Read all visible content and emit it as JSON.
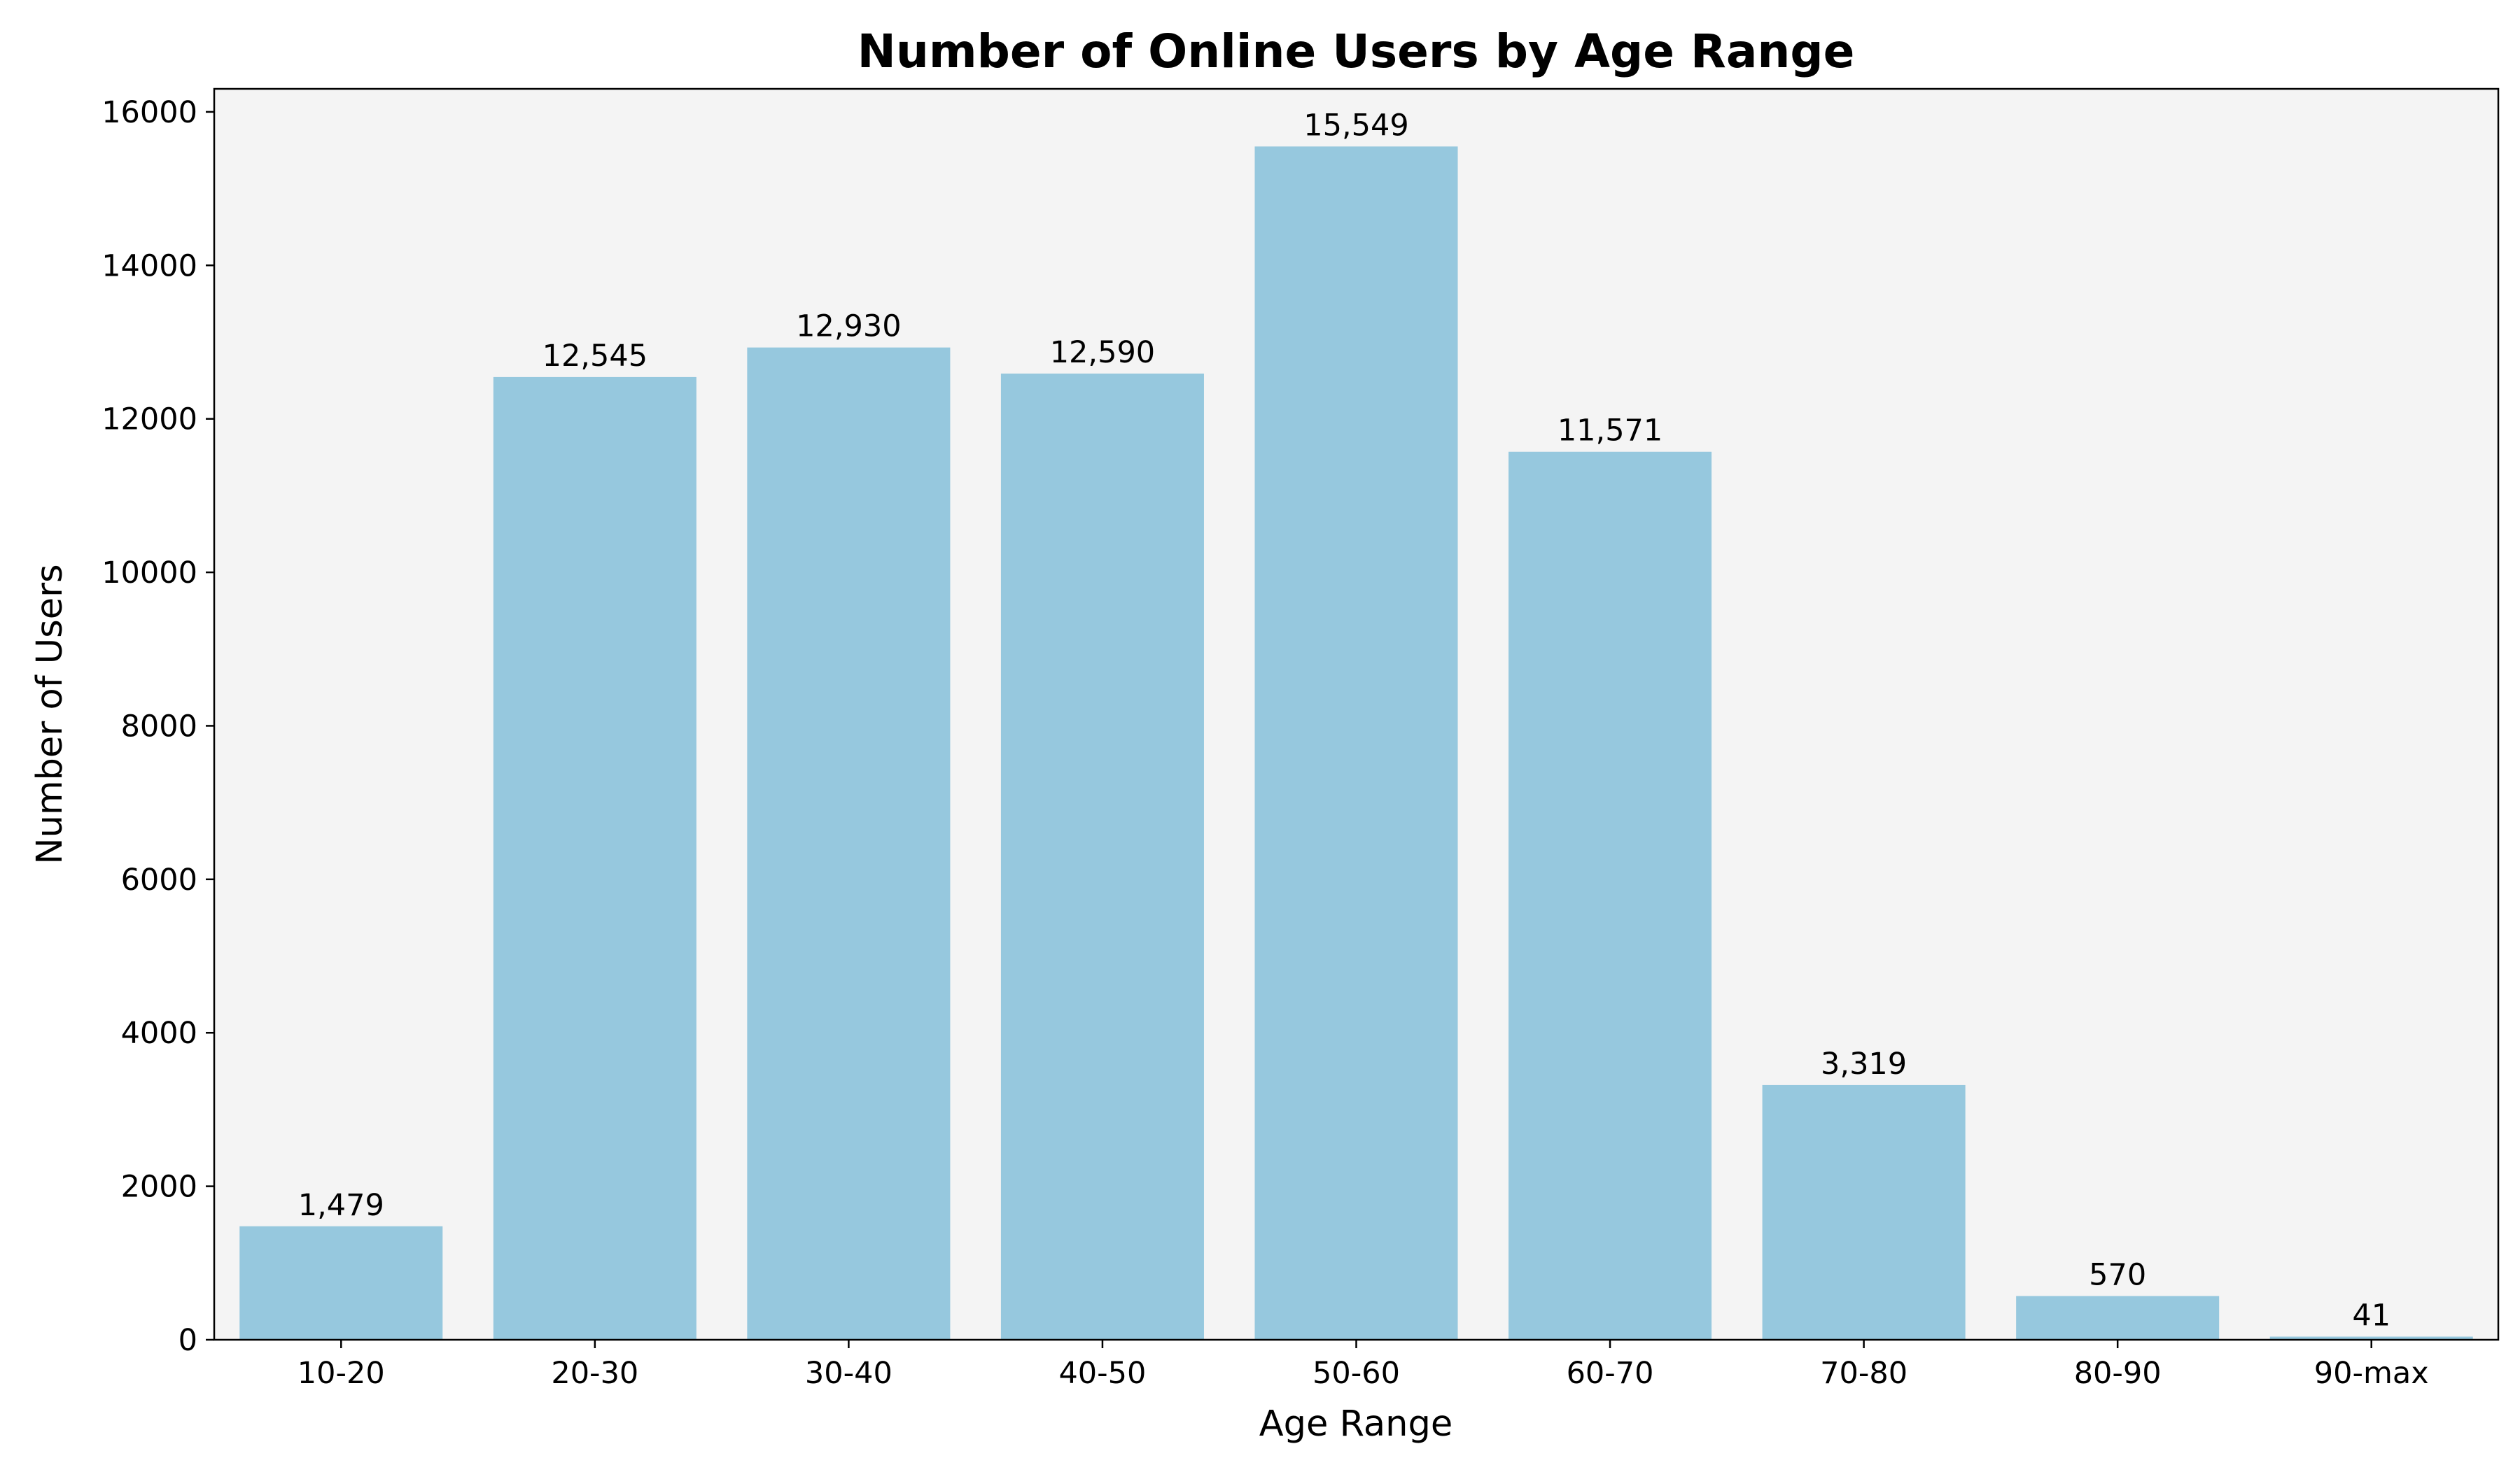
{
  "chart_data": {
    "type": "bar",
    "title": "Number of Online Users by Age Range",
    "xlabel": "Age Range",
    "ylabel": "Number of Users",
    "categories": [
      "10-20",
      "20-30",
      "30-40",
      "40-50",
      "50-60",
      "60-70",
      "70-80",
      "80-90",
      "90-max"
    ],
    "values": [
      1479,
      12545,
      12930,
      12590,
      15549,
      11571,
      3319,
      570,
      41
    ],
    "data_labels": [
      "1,479",
      "12,545",
      "12,930",
      "12,590",
      "15,549",
      "11,571",
      "3,319",
      "570",
      "41"
    ],
    "yticks": [
      0,
      2000,
      4000,
      6000,
      8000,
      10000,
      12000,
      14000,
      16000
    ],
    "ylim": [
      0,
      16300
    ],
    "grid": false,
    "legend": "none",
    "colors": {
      "bar": "#96c8de",
      "plot_background": "#f4f4f4",
      "axes": "#000000",
      "text": "#000000"
    }
  }
}
